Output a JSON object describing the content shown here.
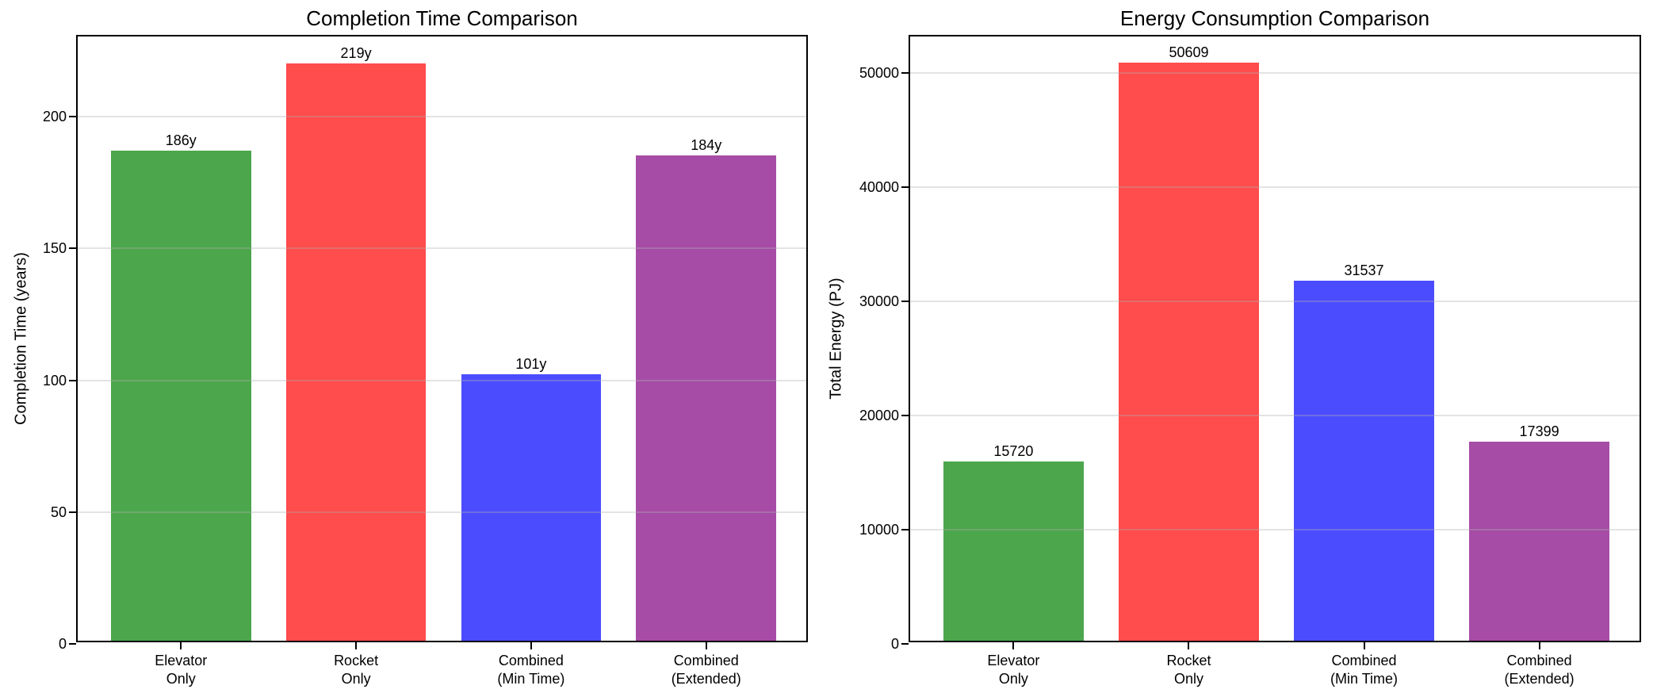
{
  "figure": {
    "background": "#ffffff",
    "grid_color_rgba": "rgba(176,176,176,0.35)",
    "spine_color": "#000000"
  },
  "chart_data": [
    {
      "type": "bar",
      "title": "Completion Time Comparison",
      "xlabel": "",
      "ylabel": "Completion Time (years)",
      "categories": [
        "Elevator\nOnly",
        "Rocket\nOnly",
        "Combined\n(Min Time)",
        "Combined\n(Extended)"
      ],
      "values": [
        186,
        219,
        101,
        184
      ],
      "bar_labels": [
        "186y",
        "219y",
        "101y",
        "184y"
      ],
      "bar_colors": [
        "#4CA64C",
        "#FF4C4C",
        "#4C4CFF",
        "#A64CA6"
      ],
      "ylim": [
        0,
        230.4
      ],
      "yticks": [
        0,
        50,
        100,
        150,
        200
      ],
      "ytick_labels": [
        "0",
        "50",
        "100",
        "150",
        "200"
      ],
      "xlim": [
        -0.59,
        3.59
      ],
      "bar_width": 0.8,
      "grid": true,
      "legend": "none"
    },
    {
      "type": "bar",
      "title": "Energy Consumption Comparison",
      "xlabel": "",
      "ylabel": "Total Energy (PJ)",
      "categories": [
        "Elevator\nOnly",
        "Rocket\nOnly",
        "Combined\n(Min Time)",
        "Combined\n(Extended)"
      ],
      "values": [
        15720,
        50609,
        31537,
        17399
      ],
      "bar_labels": [
        "15720",
        "50609",
        "31537",
        "17399"
      ],
      "bar_colors": [
        "#4CA64C",
        "#FF4C4C",
        "#4C4CFF",
        "#A64CA6"
      ],
      "ylim": [
        0,
        53200
      ],
      "yticks": [
        0,
        10000,
        20000,
        30000,
        40000,
        50000
      ],
      "ytick_labels": [
        "0",
        "10000",
        "20000",
        "30000",
        "40000",
        "50000"
      ],
      "xlim": [
        -0.59,
        3.59
      ],
      "bar_width": 0.8,
      "grid": true,
      "legend": "none"
    }
  ]
}
